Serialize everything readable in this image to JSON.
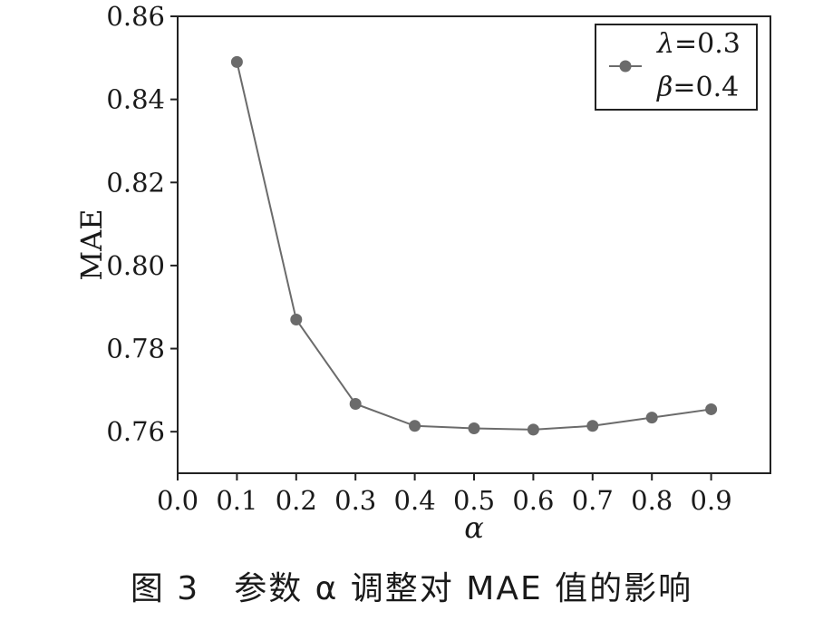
{
  "chart_data": {
    "type": "line",
    "x": [
      0.1,
      0.2,
      0.3,
      0.4,
      0.5,
      0.6,
      0.7,
      0.8,
      0.9
    ],
    "series": [
      {
        "name": "λ=0.3 β=0.4",
        "values": [
          0.849,
          0.787,
          0.7667,
          0.7614,
          0.7608,
          0.7605,
          0.7614,
          0.7634,
          0.7654
        ]
      }
    ],
    "xlim": [
      0.0,
      0.9
    ],
    "ylim": [
      0.75,
      0.86
    ],
    "x_ticks": [
      "0.0",
      "0.1",
      "0.2",
      "0.3",
      "0.4",
      "0.5",
      "0.6",
      "0.7",
      "0.8",
      "0.9"
    ],
    "y_ticks": [
      "0.76",
      "0.78",
      "0.80",
      "0.82",
      "0.84",
      "0.86"
    ],
    "xlabel": "α",
    "ylabel": "MAE",
    "legend": {
      "placement": "top-right",
      "line1_symbol": "λ",
      "line1_value": "=0.3",
      "line2_symbol": "β",
      "line2_value": "=0.4"
    },
    "grid": false,
    "series_color": "#6b6b6b"
  },
  "caption": "图 3　参数 α 调整对 MAE 值的影响"
}
